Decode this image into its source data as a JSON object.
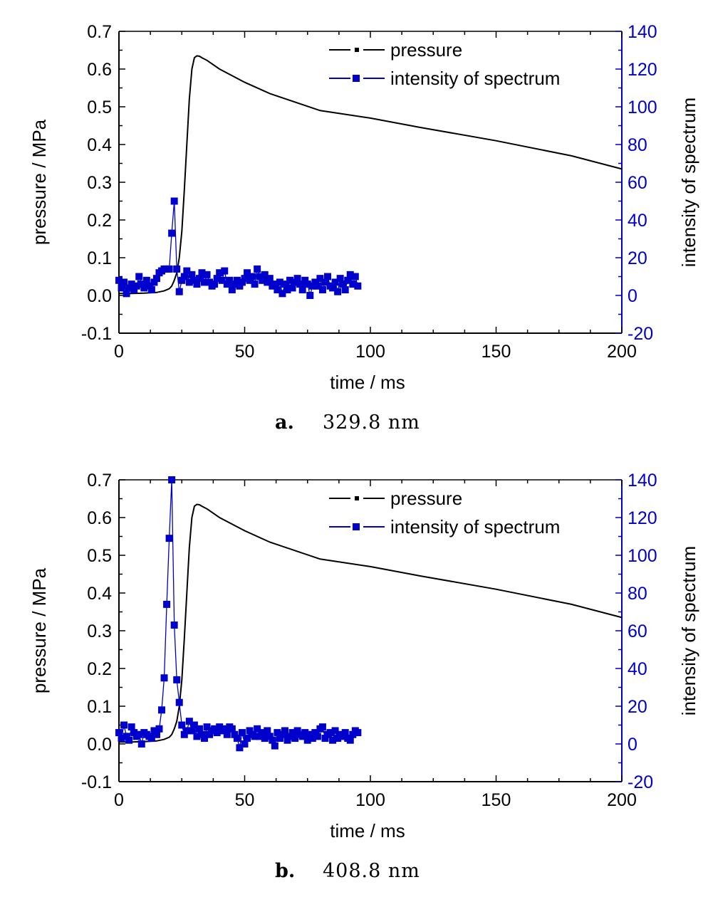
{
  "chart_data": [
    {
      "type": "line",
      "caption": {
        "label": "a.",
        "value": "329.8 nm"
      },
      "xlabel": "time / ms",
      "ylabel": "pressure / MPa",
      "y2label": "intensity of spectrum",
      "xlim": [
        0,
        200
      ],
      "ylim": [
        -0.1,
        0.7
      ],
      "y2lim": [
        -20,
        140
      ],
      "xticks": [
        "0",
        "50",
        "100",
        "150",
        "200"
      ],
      "yticks": [
        "-0.1",
        "0.0",
        "0.1",
        "0.2",
        "0.3",
        "0.4",
        "0.5",
        "0.6",
        "0.7"
      ],
      "y2ticks": [
        "-20",
        "0",
        "20",
        "40",
        "60",
        "80",
        "100",
        "120",
        "140"
      ],
      "legend_position": "top-right",
      "series": [
        {
          "name": "pressure",
          "axis": "left",
          "color": "#000000",
          "x": [
            0,
            5,
            10,
            15,
            18,
            20,
            21,
            22,
            23,
            24,
            25,
            26,
            27,
            28,
            29,
            30,
            31,
            32,
            33,
            35,
            40,
            50,
            60,
            80,
            100,
            120,
            150,
            180,
            200
          ],
          "y": [
            0.005,
            0.005,
            0.006,
            0.008,
            0.012,
            0.018,
            0.025,
            0.04,
            0.06,
            0.1,
            0.17,
            0.28,
            0.4,
            0.52,
            0.6,
            0.63,
            0.635,
            0.634,
            0.63,
            0.623,
            0.6,
            0.565,
            0.535,
            0.49,
            0.47,
            0.445,
            0.41,
            0.37,
            0.335
          ]
        },
        {
          "name": "intensity of spectrum",
          "axis": "right",
          "color": "#0000ff",
          "marker": "square",
          "x": [
            0,
            1,
            2,
            3,
            4,
            5,
            6,
            7,
            8,
            9,
            10,
            11,
            12,
            13,
            14,
            15,
            16,
            17,
            18,
            19,
            20,
            21,
            22,
            23,
            24,
            25,
            26,
            27,
            28,
            29,
            30,
            31,
            32,
            33,
            34,
            35,
            36,
            37,
            38,
            39,
            40,
            41,
            42,
            43,
            44,
            45,
            46,
            47,
            48,
            49,
            50,
            51,
            52,
            53,
            54,
            55,
            56,
            57,
            58,
            59,
            60,
            61,
            62,
            63,
            64,
            65,
            66,
            67,
            68,
            69,
            70,
            71,
            72,
            73,
            74,
            75,
            76,
            77,
            78,
            79,
            80,
            81,
            82,
            83,
            84,
            85,
            86,
            87,
            88,
            89,
            90,
            91,
            92,
            93,
            94,
            95
          ],
          "y": [
            8,
            4,
            7,
            1,
            4,
            6,
            3,
            5,
            10,
            6,
            4,
            8,
            5,
            3,
            7,
            9,
            12,
            13,
            14,
            14,
            14,
            33,
            50,
            14,
            2,
            8,
            10,
            13,
            7,
            11,
            8,
            6,
            9,
            12,
            7,
            11,
            7,
            5,
            6,
            9,
            12,
            8,
            13,
            6,
            8,
            3,
            6,
            8,
            5,
            7,
            9,
            12,
            8,
            10,
            6,
            14,
            10,
            8,
            11,
            7,
            9,
            5,
            6,
            3,
            7,
            1,
            6,
            3,
            8,
            4,
            7,
            9,
            6,
            3,
            8,
            6,
            0,
            5,
            7,
            5,
            9,
            3,
            7,
            10,
            5,
            4,
            7,
            2,
            9,
            6,
            3,
            8,
            11,
            6,
            10,
            5
          ]
        }
      ]
    },
    {
      "type": "line",
      "caption": {
        "label": "b.",
        "value": "408.8 nm"
      },
      "xlabel": "time / ms",
      "ylabel": "pressure / MPa",
      "y2label": "intensity of spectrum",
      "xlim": [
        0,
        200
      ],
      "ylim": [
        -0.1,
        0.7
      ],
      "y2lim": [
        -20,
        140
      ],
      "xticks": [
        "0",
        "50",
        "100",
        "150",
        "200"
      ],
      "yticks": [
        "-0.1",
        "0.0",
        "0.1",
        "0.2",
        "0.3",
        "0.4",
        "0.5",
        "0.6",
        "0.7"
      ],
      "y2ticks": [
        "-20",
        "0",
        "20",
        "40",
        "60",
        "80",
        "100",
        "120",
        "140"
      ],
      "legend_position": "top-right",
      "series": [
        {
          "name": "pressure",
          "axis": "left",
          "color": "#000000",
          "x": [
            0,
            5,
            10,
            15,
            18,
            20,
            21,
            22,
            23,
            24,
            25,
            26,
            27,
            28,
            29,
            30,
            31,
            32,
            33,
            35,
            40,
            50,
            60,
            80,
            100,
            120,
            150,
            180,
            200
          ],
          "y": [
            0.005,
            0.005,
            0.006,
            0.008,
            0.012,
            0.018,
            0.025,
            0.04,
            0.06,
            0.1,
            0.17,
            0.28,
            0.4,
            0.52,
            0.6,
            0.63,
            0.635,
            0.634,
            0.63,
            0.623,
            0.6,
            0.565,
            0.535,
            0.49,
            0.47,
            0.445,
            0.41,
            0.37,
            0.335
          ]
        },
        {
          "name": "intensity of spectrum",
          "axis": "right",
          "color": "#0000ff",
          "marker": "square",
          "x": [
            0,
            1,
            2,
            3,
            4,
            5,
            6,
            7,
            8,
            9,
            10,
            11,
            12,
            13,
            14,
            15,
            16,
            17,
            18,
            19,
            20,
            21,
            22,
            23,
            24,
            25,
            26,
            27,
            28,
            29,
            30,
            31,
            32,
            33,
            34,
            35,
            36,
            37,
            38,
            39,
            40,
            41,
            42,
            43,
            44,
            45,
            46,
            47,
            48,
            49,
            50,
            51,
            52,
            53,
            54,
            55,
            56,
            57,
            58,
            59,
            60,
            61,
            62,
            63,
            64,
            65,
            66,
            67,
            68,
            69,
            70,
            71,
            72,
            73,
            74,
            75,
            76,
            77,
            78,
            79,
            80,
            81,
            82,
            83,
            84,
            85,
            86,
            87,
            88,
            89,
            90,
            91,
            92,
            93,
            94,
            95
          ],
          "y": [
            6,
            3,
            10,
            4,
            2,
            9,
            6,
            4,
            5,
            0,
            6,
            5,
            4,
            3,
            7,
            5,
            8,
            18,
            35,
            74,
            109,
            140,
            63,
            34,
            22,
            10,
            5,
            7,
            12,
            7,
            10,
            4,
            8,
            5,
            3,
            9,
            5,
            7,
            8,
            6,
            9,
            7,
            8,
            5,
            9,
            8,
            5,
            3,
            -2,
            6,
            0,
            3,
            7,
            5,
            4,
            8,
            4,
            6,
            3,
            7,
            4,
            2,
            -1,
            6,
            3,
            5,
            7,
            2,
            4,
            6,
            3,
            7,
            5,
            4,
            6,
            2,
            5,
            3,
            6,
            4,
            8,
            9,
            3,
            5,
            6,
            2,
            7,
            3,
            5,
            4,
            6,
            3,
            2,
            5,
            7,
            6
          ]
        }
      ]
    }
  ]
}
